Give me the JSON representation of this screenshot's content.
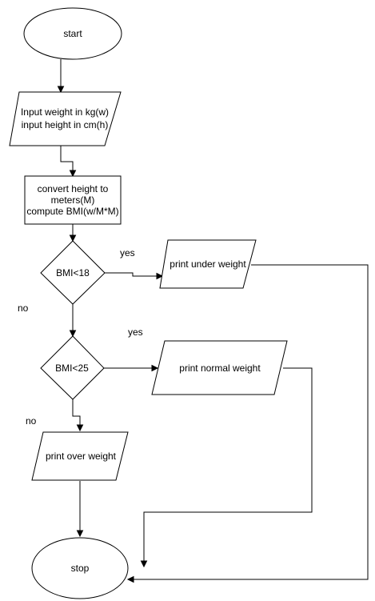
{
  "nodes": {
    "start": {
      "kind": "terminator",
      "lines": [
        "start"
      ]
    },
    "input": {
      "kind": "io",
      "lines": [
        "Input weight in kg(w)",
        "input height in cm(h)"
      ]
    },
    "compute": {
      "kind": "process",
      "lines": [
        "convert height to",
        "meters(M)",
        "compute BMI(w/M*M)"
      ]
    },
    "check18": {
      "kind": "decision",
      "lines": [
        "BMI<18"
      ]
    },
    "under": {
      "kind": "io",
      "lines": [
        "print under weight"
      ]
    },
    "check25": {
      "kind": "decision",
      "lines": [
        "BMI<25"
      ]
    },
    "normal": {
      "kind": "io",
      "lines": [
        "print normal weight"
      ]
    },
    "over": {
      "kind": "io",
      "lines": [
        "print over weight"
      ]
    },
    "stop": {
      "kind": "terminator",
      "lines": [
        "stop"
      ]
    }
  },
  "edge_labels": {
    "yes_18": "yes",
    "no_18": "no",
    "yes_25": "yes",
    "no_25": "no"
  },
  "colors": {
    "stroke": "#000000",
    "fill": "#ffffff",
    "text": "#000000"
  }
}
